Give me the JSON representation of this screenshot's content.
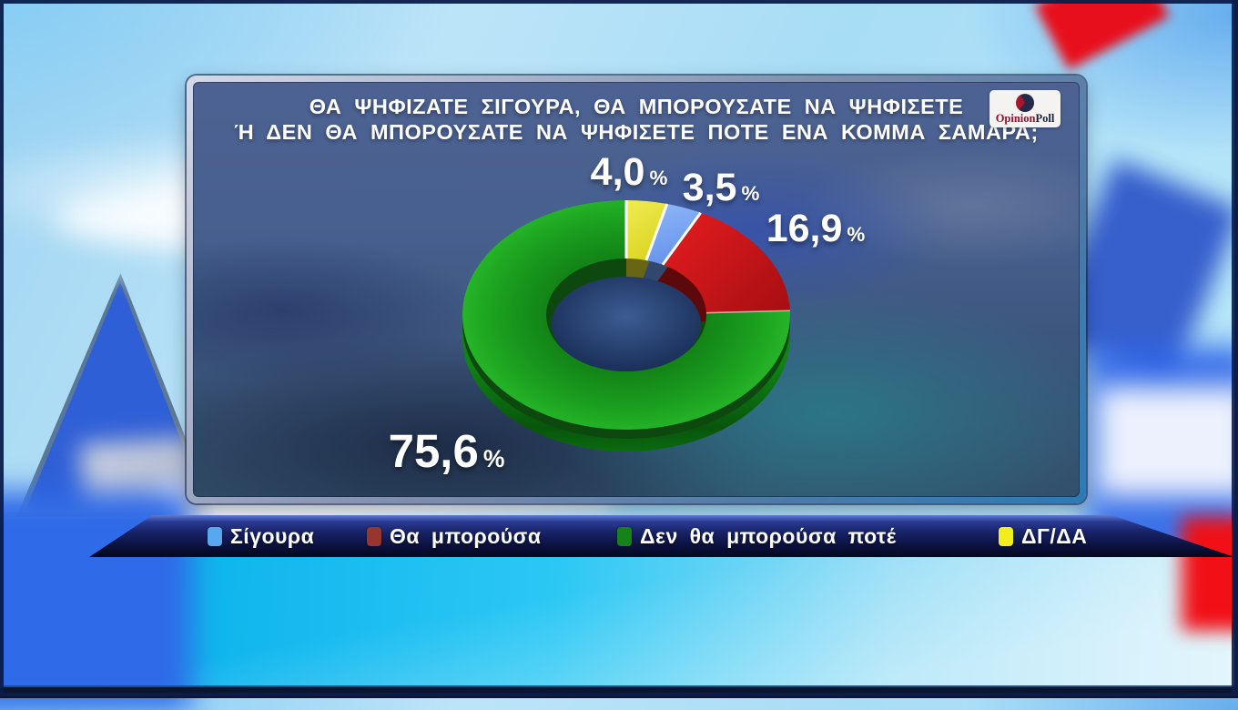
{
  "header": {
    "title_line1": "ΘΑ ΨΗΦΙΖΑΤΕ ΣΙΓΟΥΡΑ, ΘΑ ΜΠΟΡΟΥΣΑΤΕ ΝΑ ΨΗΦΙΣΕΤΕ",
    "title_line2": "Ή ΔΕΝ ΘΑ ΜΠΟΡΟΥΣΑΤΕ ΝΑ ΨΗΦΙΣΕΤΕ ΠΟΤΕ ΕΝΑ ΚΟΜΜΑ ΣΑΜΑΡΑ;"
  },
  "logo": {
    "part1": "Opinion",
    "part2": "Poll"
  },
  "chart_data": {
    "type": "pie",
    "style": "3d-donut",
    "title": "ΘΑ ΨΗΦΙΖΑΤΕ ΣΙΓΟΥΡΑ, ΘΑ ΜΠΟΡΟΥΣΑΤΕ ΝΑ ΨΗΦΙΣΕΤΕ Ή ΔΕΝ ΘΑ ΜΠΟΡΟΥΣΑΤΕ ΝΑ ΨΗΦΙΣΕΤΕ ΠΟΤΕ ΕΝΑ ΚΟΜΜΑ ΣΑΜΑΡΑ;",
    "unit": "%",
    "percent_sign": "%",
    "series": [
      {
        "label": "Σίγουρα",
        "value": 3.5,
        "display": "3,5",
        "color": "#6d9df2"
      },
      {
        "label": "Θα μπορούσα",
        "value": 16.9,
        "display": "16,9",
        "color": "#cf1518"
      },
      {
        "label": "Δεν θα μπορούσα ποτέ",
        "value": 75.6,
        "display": "75,6",
        "color": "#1da021"
      },
      {
        "label": "ΔΓ/ΔΑ",
        "value": 4.0,
        "display": "4,0",
        "color": "#e6e02e"
      }
    ],
    "slice_order_clockwise_from_top": [
      3,
      0,
      1,
      2
    ],
    "legend_position": "bottom"
  },
  "legend": {
    "swatch_colors": [
      "#58a8f0",
      "#97352f",
      "#17821a",
      "#f0ee1c"
    ]
  }
}
